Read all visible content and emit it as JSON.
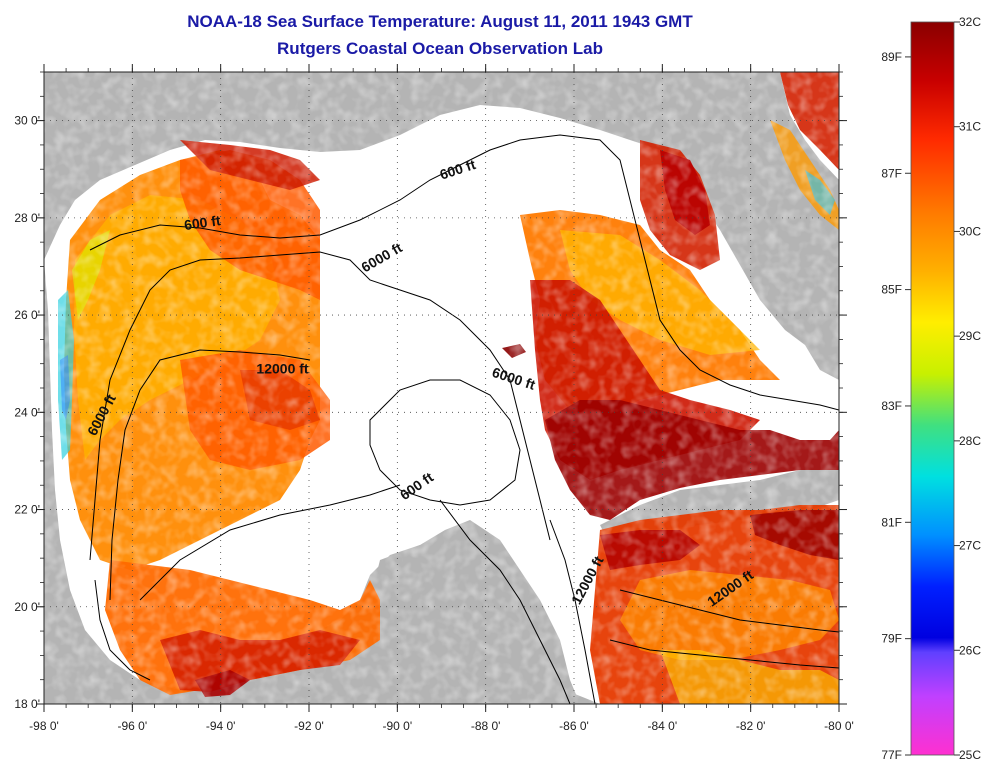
{
  "title": "NOAA-18 Sea Surface Temperature:  August 11, 2011 1943 GMT",
  "subtitle": "Rutgers Coastal Ocean Observation Lab",
  "lon_ticks": [
    {
      "value": -98,
      "label": "-98 0'"
    },
    {
      "value": -96,
      "label": "-96 0'"
    },
    {
      "value": -94,
      "label": "-94 0'"
    },
    {
      "value": -92,
      "label": "-92 0'"
    },
    {
      "value": -90,
      "label": "-90 0'"
    },
    {
      "value": -88,
      "label": "-88 0'"
    },
    {
      "value": -86,
      "label": "-86 0'"
    },
    {
      "value": -84,
      "label": "-84 0'"
    },
    {
      "value": -82,
      "label": "-82 0'"
    },
    {
      "value": -80,
      "label": "-80 0'"
    }
  ],
  "lat_ticks": [
    {
      "value": 30,
      "label": "30 0'"
    },
    {
      "value": 28,
      "label": "28 0'"
    },
    {
      "value": 26,
      "label": "26 0'"
    },
    {
      "value": 24,
      "label": "24 0'"
    },
    {
      "value": 22,
      "label": "22 0'"
    },
    {
      "value": 20,
      "label": "20 0'"
    },
    {
      "value": 18,
      "label": "18 0'"
    }
  ],
  "extent": {
    "lon_min": -98,
    "lon_max": -80,
    "lat_min": 18,
    "lat_max": 31
  },
  "grid": true,
  "contour_labels": [
    {
      "text": "600 ft",
      "lon": -88.6,
      "lat": 28.9,
      "angle": -18
    },
    {
      "text": "600 ft",
      "lon": -94.4,
      "lat": 27.8,
      "angle": -8
    },
    {
      "text": "6000 ft",
      "lon": -90.3,
      "lat": 27.1,
      "angle": -30
    },
    {
      "text": "12000 ft",
      "lon": -92.6,
      "lat": 24.8,
      "angle": 0
    },
    {
      "text": "6000 ft",
      "lon": -96.6,
      "lat": 23.9,
      "angle": -62
    },
    {
      "text": "6000 ft",
      "lon": -87.4,
      "lat": 24.6,
      "angle": 18
    },
    {
      "text": "600 ft",
      "lon": -89.5,
      "lat": 22.4,
      "angle": -35
    },
    {
      "text": "12000 ft",
      "lon": -85.6,
      "lat": 20.5,
      "angle": -62
    },
    {
      "text": "12000 ft",
      "lon": -82.4,
      "lat": 20.3,
      "angle": -35
    }
  ],
  "colorbar": {
    "celsius": [
      "32C",
      "31C",
      "30C",
      "29C",
      "28C",
      "27C",
      "26C",
      "25C"
    ],
    "fahrenheit": [
      "89F",
      "87F",
      "85F",
      "83F",
      "81F",
      "79F",
      "77F"
    ],
    "c_min": 25,
    "c_max": 32,
    "f_values": [
      89,
      87,
      85,
      83,
      81,
      79,
      77
    ]
  },
  "colors": {
    "land": "#b4b4b4",
    "no_data": "#ffffff",
    "title": "#1a1aa6"
  }
}
